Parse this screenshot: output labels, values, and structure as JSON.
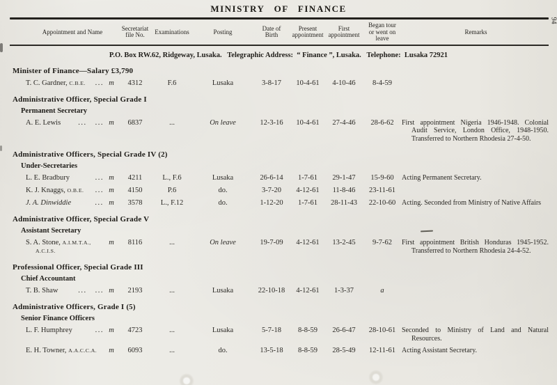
{
  "page": {
    "title": "MINISTRY  OF  FINANCE",
    "page_number": "94",
    "address_line": "P.O. Box RW.62, Ridgeway, Lusaka.  Telegraphic Address:  “ Finance ”, Lusaka.  Telephone:  Lusaka 72921"
  },
  "table": {
    "headers": [
      "Appointment and Name",
      "Secretariat\nfile No.",
      "Examinations",
      "Posting",
      "Date of\nBirth",
      "Present\nappointment",
      "First\nappointment",
      "Began tour\nor went on\nleave",
      "Remarks"
    ]
  },
  "sections": [
    {
      "heading": "Minister of Finance—Salary £3,790",
      "rows": [
        {
          "name": "T. C. Gardner,",
          "post": "C.B.E.",
          "post2": "",
          "dots": "...",
          "m": "m",
          "file_no": "4312",
          "exams": "F.6",
          "posting": "Lusaka",
          "dob": "3-8-17",
          "present": "10-4-61",
          "first": "4-10-46",
          "began": "8-4-59",
          "remarks": ""
        }
      ]
    },
    {
      "heading": "Administrative Officer, Special Grade I",
      "sub": "Permanent Secretary",
      "rows": [
        {
          "name": "A. E. Lewis",
          "post": "",
          "post2": "",
          "dots": "... ...",
          "m": "m",
          "file_no": "6837",
          "exams": "...",
          "posting": "On leave",
          "dob": "12-3-16",
          "present": "10-4-61",
          "first": "27-4-46",
          "began": "28-6-62",
          "remarks": "First appointment Nigeria 1946-1948. Colonial Audit Service, London Office, 1948-1950. Transferred to Northern Rhodesia 27-4-50."
        }
      ]
    },
    {
      "heading": "Administrative Officers, Special Grade IV (2)",
      "sub": "Under-Secretaries",
      "rows": [
        {
          "name": "L. E. Bradbury",
          "post": "",
          "post2": "",
          "dots": "...",
          "m": "m",
          "file_no": "4211",
          "exams": "L., F.6",
          "posting": "Lusaka",
          "dob": "26-6-14",
          "present": "1-7-61",
          "first": "29-1-47",
          "began": "15-9-60",
          "remarks": "Acting Permanent Secretary."
        },
        {
          "name": "K. J. Knaggs,",
          "post": "O.B.E.",
          "post2": "",
          "dots": "...",
          "m": "m",
          "file_no": "4150",
          "exams": "P.6",
          "posting": "do.",
          "dob": "3-7-20",
          "present": "4-12-61",
          "first": "11-8-46",
          "began": "23-11-61",
          "remarks": ""
        },
        {
          "name": "J. A. Dinwiddie",
          "post": "",
          "post2": "",
          "dots": "...",
          "m": "m",
          "file_no": "3578",
          "exams": "L., F.12",
          "posting": "do.",
          "dob": "1-12-20",
          "present": "1-7-61",
          "first": "28-11-43",
          "began": "22-10-60",
          "remarks": "Acting.  Seconded from Ministry of Native Affairs"
        }
      ]
    },
    {
      "heading": "Administrative Officer, Special Grade V",
      "sub": "Assistant Secretary",
      "rows": [
        {
          "name": "S. A. Stone,",
          "post": "A.I.M.T.A.,",
          "post2": "A.C.I.S.",
          "dots": "",
          "m": "m",
          "file_no": "8116",
          "exams": "...",
          "posting": "On leave",
          "dob": "19-7-09",
          "present": "4-12-61",
          "first": "13-2-45",
          "began": "9-7-62",
          "remarks": "First appointment British Honduras 1945-1952. Transferred to Northern Rhodesia 24-4-52."
        }
      ]
    },
    {
      "heading": "Professional Officer, Special Grade III",
      "sub": "Chief Accountant",
      "rows": [
        {
          "name": "T. B. Shaw",
          "post": "",
          "post2": "",
          "dots": "... ...",
          "m": "m",
          "file_no": "2193",
          "exams": "...",
          "posting": "Lusaka",
          "dob": "22-10-18",
          "present": "4-12-61",
          "first": "1-3-37",
          "began": "a",
          "remarks": ""
        }
      ]
    },
    {
      "heading": "Administrative Officers, Grade I (5)",
      "sub": "Senior Finance Officers",
      "rows": [
        {
          "name": "L. F. Humphrey",
          "post": "",
          "post2": "",
          "dots": "...",
          "m": "m",
          "file_no": "4723",
          "exams": "...",
          "posting": "Lusaka",
          "dob": "5-7-18",
          "present": "8-8-59",
          "first": "26-6-47",
          "began": "28-10-61",
          "remarks": "Seconded to Ministry of Land and Natural Resources."
        },
        {
          "name": "E. H. Towner,",
          "post": "A.A.C.C.A.",
          "post2": "",
          "dots": "",
          "m": "m",
          "file_no": "6093",
          "exams": "...",
          "posting": "do.",
          "dob": "13-5-18",
          "present": "8-8-59",
          "first": "28-5-49",
          "began": "12-11-61",
          "remarks": "Acting Assistant Secretary."
        }
      ]
    }
  ]
}
